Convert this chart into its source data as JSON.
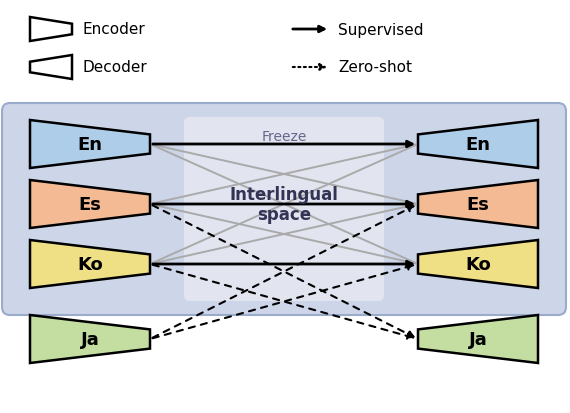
{
  "languages": [
    "En",
    "Es",
    "Ko",
    "Ja"
  ],
  "lang_colors": [
    "#aecde8",
    "#f4ba94",
    "#f0e085",
    "#c3dea0"
  ],
  "bg_color": "#cdd5e8",
  "freeze_bg": "#e2e5f0",
  "freeze_label": "Freeze",
  "interlingual_label": "Interlingual\nspace",
  "legend_encoder": "Encoder",
  "legend_decoder": "Decoder",
  "legend_supervised": "Supervised",
  "legend_zeroshot": "Zero-shot",
  "figsize": [
    5.7,
    4.14
  ],
  "dpi": 100
}
